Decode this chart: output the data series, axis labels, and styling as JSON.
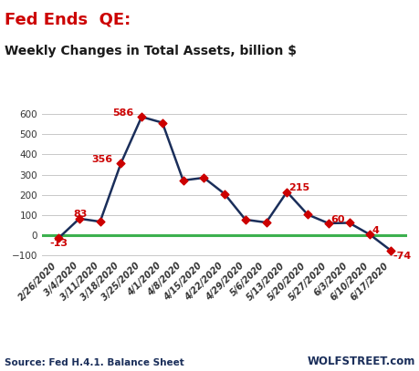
{
  "title_line1": "Fed Ends  QE:",
  "title_line2": "Weekly Changes in Total Assets, billion $",
  "source_text": "Source: Fed H.4.1. Balance Sheet",
  "watermark": "WOLFSTREET.com",
  "dates": [
    "2/26/2020",
    "3/4/2020",
    "3/11/2020",
    "3/18/2020",
    "3/25/2020",
    "4/1/2020",
    "4/8/2020",
    "4/15/2020",
    "4/22/2020",
    "4/29/2020",
    "5/6/2020",
    "5/13/2020",
    "5/20/2020",
    "5/27/2020",
    "6/3/2020",
    "6/10/2020",
    "6/17/2020"
  ],
  "values": [
    -13,
    83,
    68,
    356,
    586,
    557,
    272,
    285,
    205,
    78,
    64,
    215,
    103,
    60,
    62,
    4,
    -74
  ],
  "annotations": [
    {
      "idx": 0,
      "val": -13,
      "xoff": 0.0,
      "yoff": -28,
      "ha": "center"
    },
    {
      "idx": 1,
      "val": 83,
      "xoff": -0.3,
      "yoff": 22,
      "ha": "left"
    },
    {
      "idx": 3,
      "val": 356,
      "xoff": -0.4,
      "yoff": 20,
      "ha": "right"
    },
    {
      "idx": 4,
      "val": 586,
      "xoff": -0.4,
      "yoff": 20,
      "ha": "right"
    },
    {
      "idx": 11,
      "val": 215,
      "xoff": 0.1,
      "yoff": 20,
      "ha": "left"
    },
    {
      "idx": 13,
      "val": 60,
      "xoff": 0.1,
      "yoff": 20,
      "ha": "left"
    },
    {
      "idx": 15,
      "val": 4,
      "xoff": 0.1,
      "yoff": 20,
      "ha": "left"
    },
    {
      "idx": 16,
      "val": -74,
      "xoff": 0.1,
      "yoff": -28,
      "ha": "left"
    }
  ],
  "line_color": "#1a2e5a",
  "marker_color": "#cc0000",
  "zero_line_color": "#3cb04e",
  "grid_color": "#c8c8c8",
  "title1_color": "#cc0000",
  "title2_color": "#1a1a1a",
  "label_color": "#cc0000",
  "source_color": "#1a2e5a",
  "watermark_color": "#1a2e5a",
  "ylim": [
    -120,
    650
  ],
  "yticks": [
    -100,
    0,
    100,
    200,
    300,
    400,
    500,
    600
  ],
  "background_color": "#ffffff",
  "title1_fontsize": 13,
  "title2_fontsize": 10,
  "annotation_fontsize": 8,
  "tick_fontsize": 7,
  "source_fontsize": 7.5,
  "watermark_fontsize": 8.5
}
